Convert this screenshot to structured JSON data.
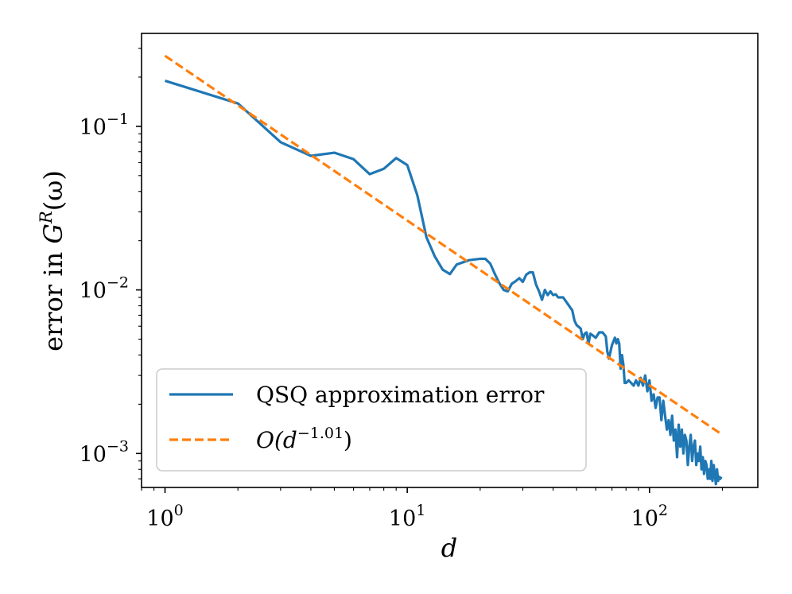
{
  "chart_data": {
    "type": "line",
    "title": "",
    "xlabel": "d",
    "ylabel": "error in G^R(ω)",
    "x_scale": "log",
    "y_scale": "log",
    "xlim": [
      0.8,
      280
    ],
    "ylim": [
      0.00062,
      0.37
    ],
    "grid": false,
    "legend_position": "lower-left",
    "x_ticks": [
      {
        "value": 1,
        "base": "10",
        "exp": "0"
      },
      {
        "value": 10,
        "base": "10",
        "exp": "1"
      },
      {
        "value": 100,
        "base": "10",
        "exp": "2"
      }
    ],
    "y_ticks": [
      {
        "value": 0.1,
        "base": "10",
        "exp": "−1"
      },
      {
        "value": 0.01,
        "base": "10",
        "exp": "−2"
      },
      {
        "value": 0.001,
        "base": "10",
        "exp": "−3"
      }
    ],
    "ylabel_parts": {
      "prefix": "error in ",
      "G": "G",
      "sup": "R",
      "arg": "(ω)"
    },
    "series": [
      {
        "name": "QSQ approximation error",
        "style": "solid",
        "color": "#1f77b4",
        "points": [
          [
            1,
            0.19
          ],
          [
            2,
            0.138
          ],
          [
            3,
            0.08
          ],
          [
            4,
            0.066
          ],
          [
            5,
            0.069
          ],
          [
            6,
            0.063
          ],
          [
            7,
            0.051
          ],
          [
            8,
            0.055
          ],
          [
            9,
            0.064
          ],
          [
            10,
            0.058
          ],
          [
            11,
            0.038
          ],
          [
            12,
            0.021
          ],
          [
            13,
            0.016
          ],
          [
            14,
            0.0133
          ],
          [
            15,
            0.0125
          ],
          [
            16,
            0.0143
          ],
          [
            18,
            0.0152
          ],
          [
            20,
            0.0155
          ],
          [
            21,
            0.0155
          ],
          [
            22,
            0.0145
          ],
          [
            23,
            0.0125
          ],
          [
            24,
            0.011
          ],
          [
            25,
            0.01
          ],
          [
            26,
            0.0098
          ],
          [
            27,
            0.0109
          ],
          [
            28,
            0.0113
          ],
          [
            29,
            0.0118
          ],
          [
            30,
            0.0112
          ],
          [
            31,
            0.0124
          ],
          [
            32,
            0.0128
          ],
          [
            33,
            0.0128
          ],
          [
            34,
            0.0108
          ],
          [
            35,
            0.0098
          ],
          [
            36,
            0.0087
          ],
          [
            37,
            0.01
          ],
          [
            38,
            0.0093
          ],
          [
            39,
            0.0098
          ],
          [
            40,
            0.0093
          ],
          [
            41,
            0.0094
          ],
          [
            42,
            0.009
          ],
          [
            44,
            0.009
          ],
          [
            46,
            0.0082
          ],
          [
            48,
            0.0075
          ],
          [
            49,
            0.0065
          ],
          [
            50,
            0.0061
          ],
          [
            52,
            0.0058
          ],
          [
            53,
            0.005
          ],
          [
            54,
            0.0054
          ],
          [
            55,
            0.0055
          ],
          [
            56,
            0.0047
          ],
          [
            57,
            0.0054
          ],
          [
            58,
            0.0053
          ],
          [
            60,
            0.0051
          ],
          [
            62,
            0.0055
          ],
          [
            64,
            0.0055
          ],
          [
            66,
            0.0052
          ],
          [
            67,
            0.0042
          ],
          [
            68,
            0.0038
          ],
          [
            70,
            0.0046
          ],
          [
            72,
            0.0051
          ],
          [
            73,
            0.0047
          ],
          [
            74,
            0.005
          ],
          [
            75,
            0.0047
          ],
          [
            76,
            0.0033
          ],
          [
            77,
            0.004
          ],
          [
            78,
            0.0035
          ],
          [
            79,
            0.0027
          ],
          [
            80,
            0.0027
          ],
          [
            82,
            0.0028
          ],
          [
            84,
            0.0027
          ],
          [
            86,
            0.0026
          ],
          [
            88,
            0.0028
          ],
          [
            90,
            0.0026
          ],
          [
            92,
            0.0029
          ],
          [
            94,
            0.0026
          ],
          [
            96,
            0.003
          ],
          [
            98,
            0.0024
          ],
          [
            100,
            0.0028
          ],
          [
            102,
            0.0021
          ],
          [
            104,
            0.0023
          ],
          [
            106,
            0.0019
          ],
          [
            108,
            0.0022
          ],
          [
            110,
            0.0022
          ],
          [
            112,
            0.0016
          ],
          [
            114,
            0.0021
          ],
          [
            116,
            0.0017
          ],
          [
            118,
            0.0014
          ],
          [
            120,
            0.0016
          ],
          [
            122,
            0.0013
          ],
          [
            124,
            0.0017
          ],
          [
            126,
            0.0012
          ],
          [
            128,
            0.0014
          ],
          [
            130,
            0.00095
          ],
          [
            132,
            0.0015
          ],
          [
            134,
            0.0011
          ],
          [
            136,
            0.0014
          ],
          [
            138,
            0.001
          ],
          [
            140,
            0.0013
          ],
          [
            142,
            0.0012
          ],
          [
            144,
            0.00085
          ],
          [
            146,
            0.0011
          ],
          [
            148,
            0.0013
          ],
          [
            150,
            0.0009
          ],
          [
            152,
            0.0011
          ],
          [
            154,
            0.0012
          ],
          [
            156,
            0.00085
          ],
          [
            158,
            0.001
          ],
          [
            160,
            0.0009
          ],
          [
            162,
            0.0011
          ],
          [
            164,
            0.0008
          ],
          [
            166,
            0.00095
          ],
          [
            168,
            0.00075
          ],
          [
            170,
            0.0009
          ],
          [
            172,
            0.00085
          ],
          [
            174,
            0.0007
          ],
          [
            176,
            0.0008
          ],
          [
            178,
            0.0007
          ],
          [
            180,
            0.0009
          ],
          [
            182,
            0.00068
          ],
          [
            184,
            0.00085
          ],
          [
            186,
            0.00075
          ],
          [
            188,
            0.00065
          ],
          [
            190,
            0.0008
          ],
          [
            192,
            0.00068
          ],
          [
            194,
            0.00072
          ],
          [
            196,
            0.0007
          ],
          [
            198,
            0.00072
          ]
        ]
      },
      {
        "name": "O(d^−1.01)",
        "style": "dashed",
        "color": "#ff7f0e",
        "points": [
          [
            1,
            0.27
          ],
          [
            200,
            0.0013
          ]
        ]
      }
    ],
    "legend": [
      {
        "label": "QSQ approximation error"
      },
      {
        "label_main": "O(d",
        "label_sup": "−1.01",
        "label_end": ")"
      }
    ]
  }
}
